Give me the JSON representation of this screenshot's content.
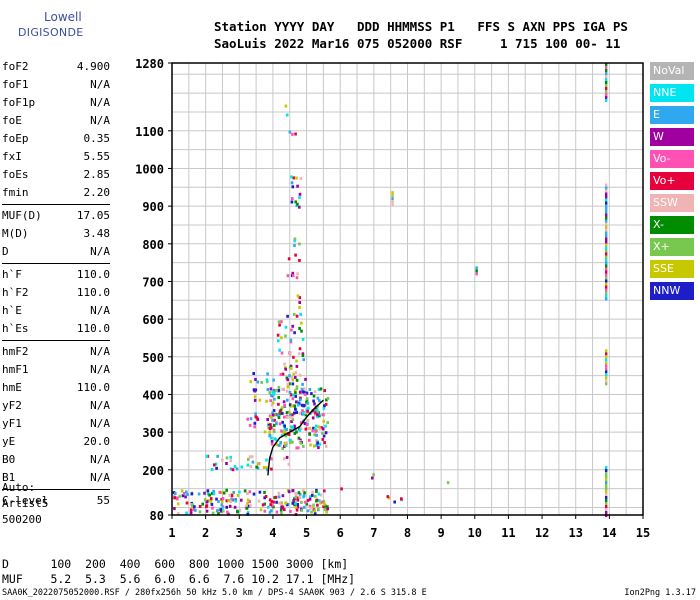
{
  "logo": {
    "line1": "Lowell",
    "line2": "DIGISONDE"
  },
  "header": {
    "line1": "Station YYYY DAY   DDD HHMMSS P1   FFS S AXN PPS IGA PS",
    "line2": "SaoLuis 2022 Mar16 075 052000 RSF     1 715 100 00- 11"
  },
  "params": [
    [
      {
        "k": "foF2",
        "v": "4.900"
      },
      {
        "k": "foF1",
        "v": "N/A"
      },
      {
        "k": "foF1p",
        "v": "N/A"
      },
      {
        "k": "foE",
        "v": "N/A"
      },
      {
        "k": "foEp",
        "v": "0.35"
      },
      {
        "k": "fxI",
        "v": "5.55"
      },
      {
        "k": "foEs",
        "v": "2.85"
      },
      {
        "k": "fmin",
        "v": "2.20"
      }
    ],
    [
      {
        "k": "MUF(D)",
        "v": "17.05"
      },
      {
        "k": "M(D)",
        "v": "3.48"
      },
      {
        "k": "D",
        "v": "N/A"
      }
    ],
    [
      {
        "k": "h`F",
        "v": "110.0"
      },
      {
        "k": "h`F2",
        "v": "110.0"
      },
      {
        "k": "h`E",
        "v": "N/A"
      },
      {
        "k": "h`Es",
        "v": "110.0"
      }
    ],
    [
      {
        "k": "hmF2",
        "v": "N/A"
      },
      {
        "k": "hmF1",
        "v": "N/A"
      },
      {
        "k": "hmE",
        "v": "110.0"
      },
      {
        "k": "yF2",
        "v": "N/A"
      },
      {
        "k": "yF1",
        "v": "N/A"
      },
      {
        "k": "yE",
        "v": "20.0"
      },
      {
        "k": "B0",
        "v": "N/A"
      },
      {
        "k": "B1",
        "v": "N/A"
      }
    ],
    [
      {
        "k": "C-level",
        "v": "55"
      }
    ]
  ],
  "auto": {
    "label": "Auto:",
    "program": "Artist5",
    "code": "500200"
  },
  "muf_table": {
    "d_line": "D      100  200  400  600  800 1000 1500 3000 [km]",
    "muf_line": "MUF    5.2  5.3  5.6  6.0  6.6  7.6 10.2 17.1 [MHz]"
  },
  "footer": {
    "left": "SAA0K_2022075052000.RSF / 280fx256h 50 kHz 5.0 km / DPS-4 SAA0K 903 / 2.6 S 315.8 E",
    "right": "Ion2Png 1.3.17"
  },
  "legend": [
    {
      "label": "NoVal",
      "color": "#b4b4b4"
    },
    {
      "label": "NNE",
      "color": "#00e6f0"
    },
    {
      "label": "E",
      "color": "#30a8f0"
    },
    {
      "label": "W",
      "color": "#a000a0"
    },
    {
      "label": "Vo-",
      "color": "#ff50b4"
    },
    {
      "label": "Vo+",
      "color": "#e6003c"
    },
    {
      "label": "SSW",
      "color": "#f0b4b4"
    },
    {
      "label": "X-",
      "color": "#008c00"
    },
    {
      "label": "X+",
      "color": "#78c850"
    },
    {
      "label": "SSE",
      "color": "#c8c800"
    },
    {
      "label": "NNW",
      "color": "#1e1ec8"
    }
  ],
  "chart_data": {
    "type": "scatter",
    "xlabel": "",
    "ylabel": "",
    "x_ticks": [
      1,
      2,
      3,
      4,
      5,
      6,
      7,
      8,
      9,
      10,
      11,
      12,
      13,
      14,
      15
    ],
    "y_ticks": [
      80,
      200,
      300,
      400,
      500,
      600,
      700,
      800,
      900,
      1000,
      1100,
      1280
    ],
    "xlim": [
      1,
      15
    ],
    "ylim": [
      80,
      1280
    ],
    "grid": true,
    "trace_curve": {
      "name": "",
      "points": [
        [
          3.85,
          185
        ],
        [
          3.9,
          230
        ],
        [
          4.0,
          260
        ],
        [
          4.2,
          285
        ],
        [
          4.5,
          300
        ],
        [
          4.8,
          315
        ],
        [
          5.0,
          340
        ],
        [
          5.2,
          360
        ],
        [
          5.5,
          385
        ]
      ]
    },
    "echo_regions": [
      {
        "x": [
          1.0,
          5.6
        ],
        "y": [
          85,
          150
        ],
        "density": 0.55
      },
      {
        "x": [
          2.0,
          4.6
        ],
        "y": [
          200,
          240
        ],
        "density": 0.25
      },
      {
        "x": [
          3.8,
          5.6
        ],
        "y": [
          260,
          420
        ],
        "density": 0.55
      },
      {
        "x": [
          3.2,
          5.0
        ],
        "y": [
          300,
          460
        ],
        "density": 0.18
      },
      {
        "x": [
          4.1,
          4.9
        ],
        "y": [
          420,
          620
        ],
        "density": 0.22
      },
      {
        "x": [
          4.4,
          4.8
        ],
        "y": [
          620,
          820
        ],
        "density": 0.15
      },
      {
        "x": [
          4.5,
          4.8
        ],
        "y": [
          900,
          1000
        ],
        "density": 0.35
      },
      {
        "x": [
          4.3,
          4.8
        ],
        "y": [
          1050,
          1180
        ],
        "density": 0.05
      },
      {
        "x": [
          6.0,
          8.0
        ],
        "y": [
          110,
          160
        ],
        "density": 0.04
      },
      {
        "x": [
          6.8,
          7.0
        ],
        "y": [
          175,
          200
        ],
        "density": 0.3
      }
    ],
    "vertical_streaks": [
      {
        "x": 7.55,
        "y": [
          905,
          940
        ]
      },
      {
        "x": 13.9,
        "y": [
          1180,
          1280
        ]
      },
      {
        "x": 13.9,
        "y": [
          650,
          960
        ]
      },
      {
        "x": 13.9,
        "y": [
          430,
          520
        ]
      },
      {
        "x": 13.9,
        "y": [
          80,
          210
        ]
      },
      {
        "x": 10.05,
        "y": [
          720,
          740
        ]
      },
      {
        "x": 9.2,
        "y": [
          165,
          170
        ]
      }
    ]
  }
}
